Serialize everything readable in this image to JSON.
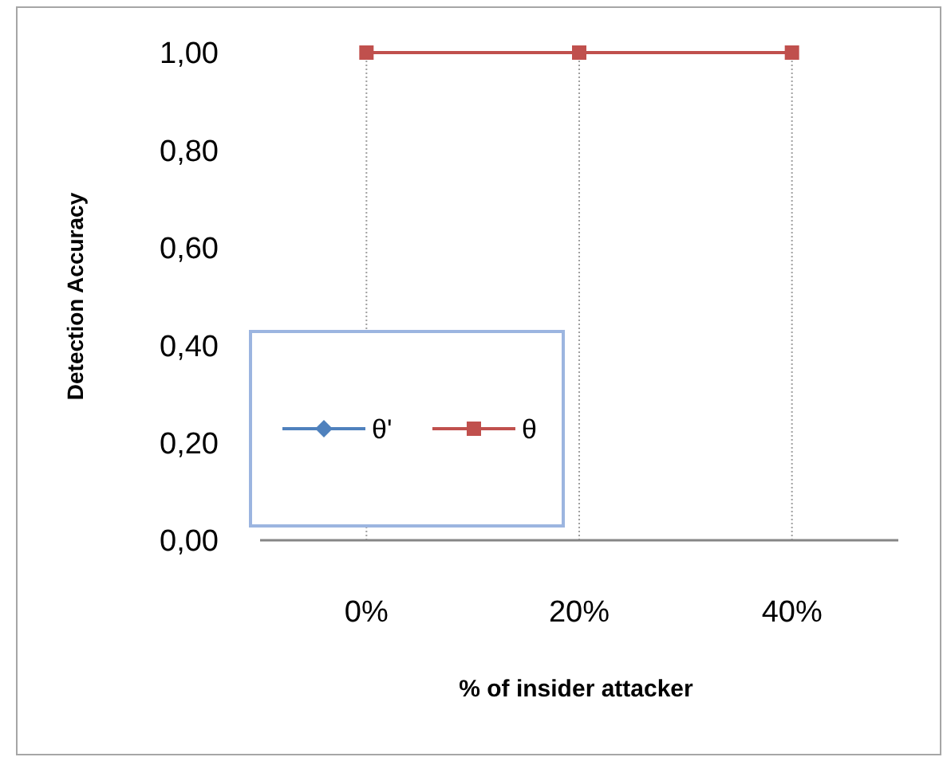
{
  "chart_data": {
    "type": "line",
    "ylabel": "Detection Accuracy",
    "xlabel": "% of insider attacker",
    "categories": [
      "0%",
      "20%",
      "40%"
    ],
    "series": [
      {
        "name": "θ'",
        "color": "#4f81bd",
        "marker": "diamond",
        "values": [
          null,
          null,
          null
        ]
      },
      {
        "name": "θ",
        "color": "#c0504d",
        "marker": "square",
        "values": [
          1,
          1,
          1
        ]
      }
    ],
    "ylim": [
      0,
      1
    ],
    "yticks": [
      {
        "value": 0,
        "label": "0,00"
      },
      {
        "value": 0.2,
        "label": "0,20"
      },
      {
        "value": 0.4,
        "label": "0,40"
      },
      {
        "value": 0.6,
        "label": "0,60"
      },
      {
        "value": 0.8,
        "label": "0,80"
      },
      {
        "value": 1,
        "label": "1,00"
      }
    ],
    "grid": "x",
    "legend": "bottom left"
  }
}
